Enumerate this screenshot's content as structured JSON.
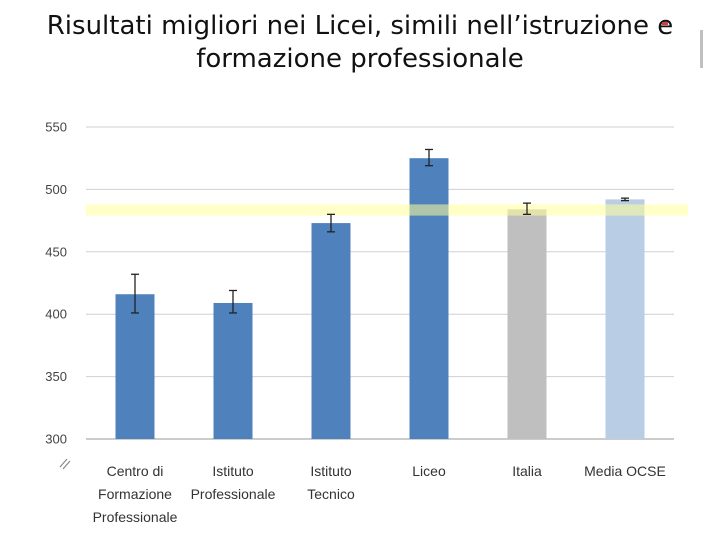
{
  "slide": {
    "title_line1": "Risultati migliori nei Licei, simili nell’istruzione e",
    "title_line2": "formazione professionale"
  },
  "chart_data": {
    "type": "bar",
    "title": "",
    "xlabel": "",
    "ylabel": "",
    "ylim": [
      300,
      550
    ],
    "yticks": [
      300,
      350,
      400,
      450,
      500,
      550
    ],
    "grid": true,
    "categories": [
      [
        "Centro di",
        "Formazione",
        "Professionale"
      ],
      [
        "Istituto",
        "Professionale"
      ],
      [
        "Istituto",
        "Tecnico"
      ],
      [
        "Liceo"
      ],
      [
        "Italia"
      ],
      [
        "Media OCSE"
      ]
    ],
    "values": [
      416,
      409,
      473,
      525,
      484,
      492
    ],
    "error_low": [
      401,
      401,
      466,
      519,
      480,
      491
    ],
    "error_high": [
      432,
      419,
      480,
      532,
      489,
      493
    ],
    "bar_colors": [
      "#4f81bd",
      "#4f81bd",
      "#4f81bd",
      "#4f81bd",
      "#bfbfbf",
      "#b9cde5"
    ],
    "reference_band": {
      "from": 479,
      "to": 488,
      "color": "#ffff99"
    }
  }
}
